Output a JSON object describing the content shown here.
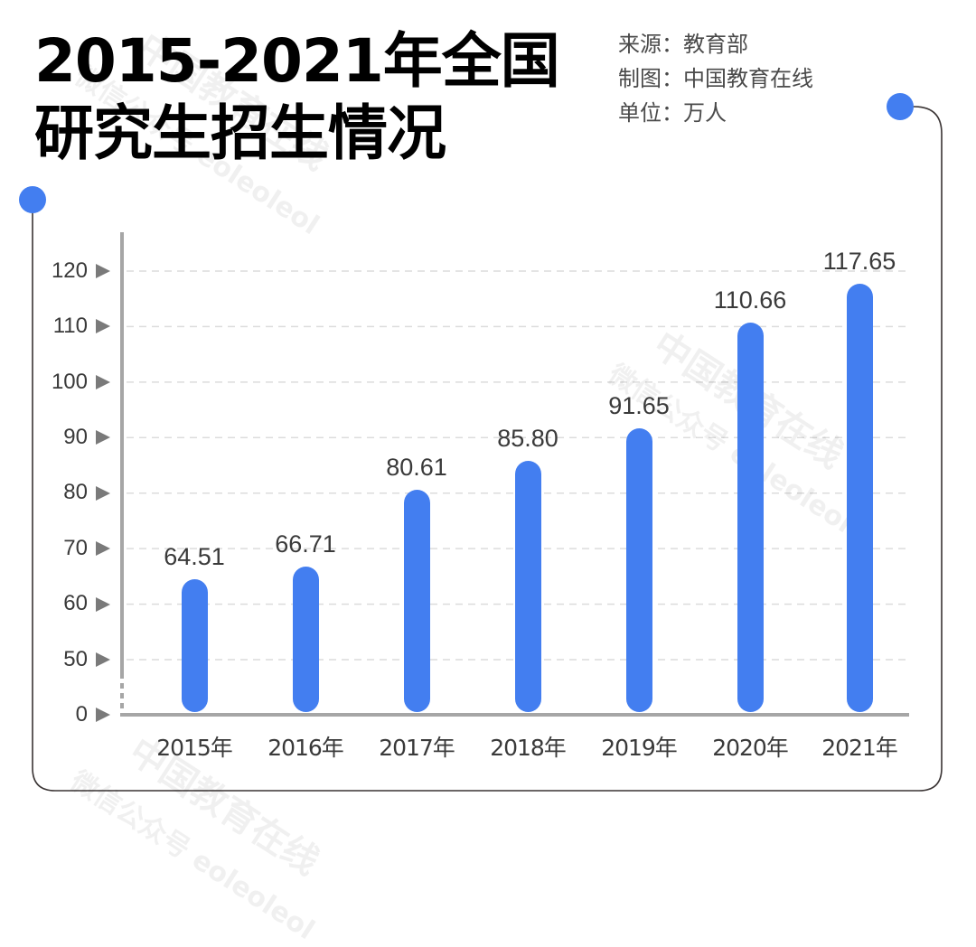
{
  "title": {
    "line1": "2015-2021年全国",
    "line2": "研究生招生情况"
  },
  "meta": {
    "source": "来源：教育部",
    "maker": "制图：中国教育在线",
    "unit": "单位：万人"
  },
  "watermark": {
    "text1": "中国教育在线",
    "text2": "微信公众号 eoleoleol"
  },
  "colors": {
    "bar": "#437ef0",
    "dot": "#437ef0",
    "axis": "#a6a6a6",
    "frame": "#3a3434"
  },
  "chart_data": {
    "type": "bar",
    "title": "2015-2021年全国研究生招生情况",
    "xlabel": "",
    "ylabel": "万人",
    "categories": [
      "2015年",
      "2016年",
      "2017年",
      "2018年",
      "2019年",
      "2020年",
      "2021年"
    ],
    "values": [
      64.51,
      66.71,
      80.61,
      85.8,
      91.65,
      110.66,
      117.65
    ],
    "value_labels": [
      "64.51",
      "66.71",
      "80.61",
      "85.80",
      "91.65",
      "110.66",
      "117.65"
    ],
    "yticks": [
      "0",
      "50",
      "60",
      "70",
      "80",
      "90",
      "100",
      "110",
      "120"
    ],
    "ylim": [
      0,
      120
    ],
    "axis_break": "between 0 and 50",
    "grid": true,
    "grid_style": "dashed horizontal",
    "legend": null
  }
}
